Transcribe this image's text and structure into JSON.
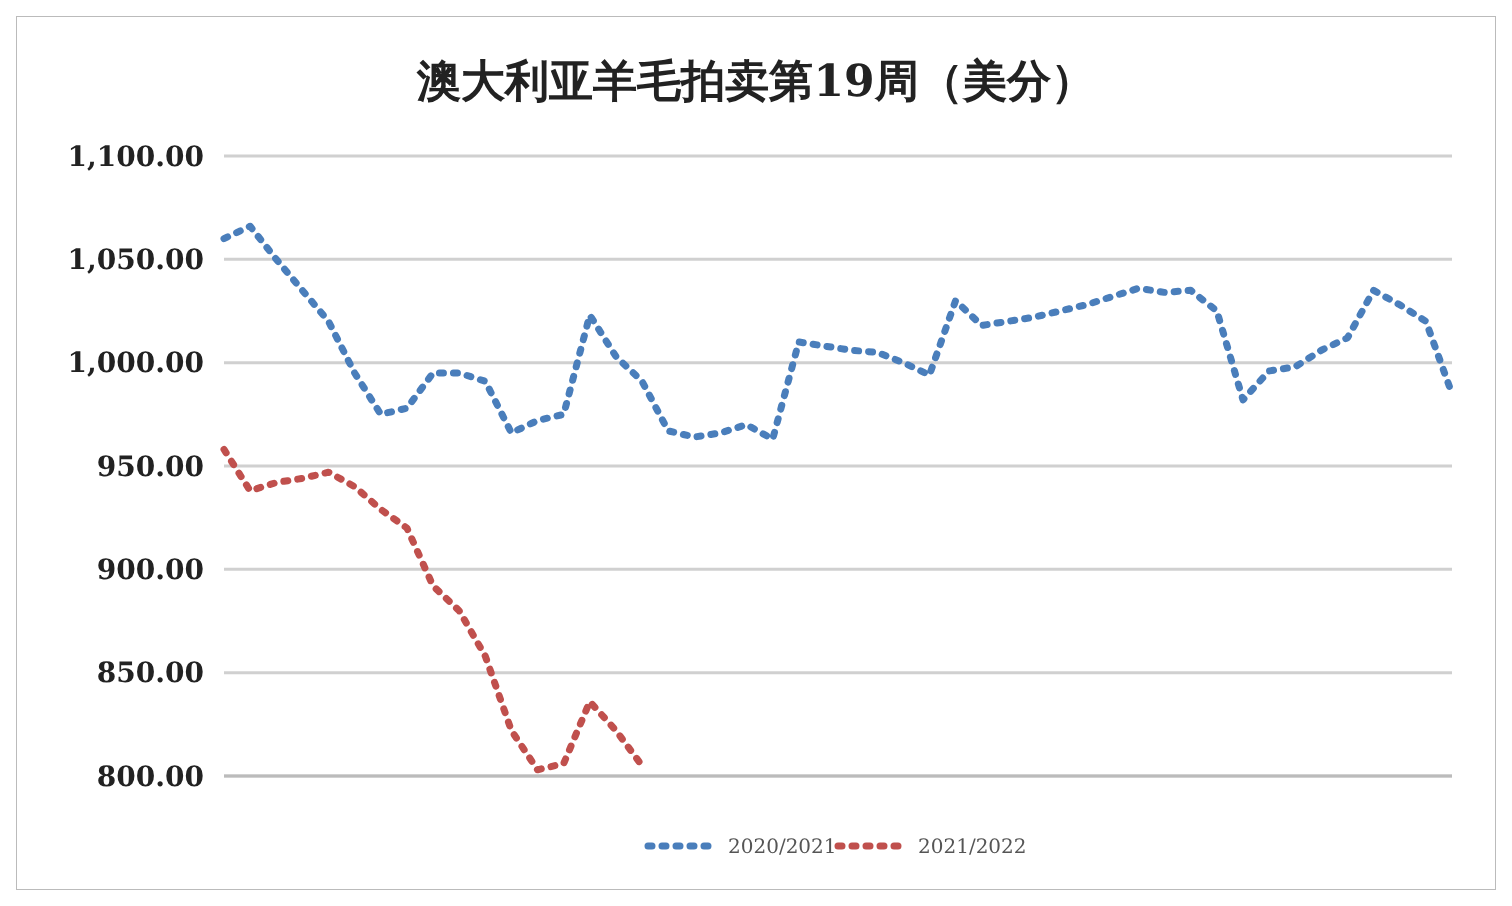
{
  "chart_data": {
    "type": "line",
    "title": "澳大利亚羊毛拍卖第19周（美分）",
    "categories": [
      null,
      null,
      null,
      null,
      null,
      null,
      null,
      null,
      null,
      null,
      null,
      null,
      null,
      null,
      null,
      null,
      null,
      null,
      null,
      null,
      null,
      null,
      null,
      null,
      null,
      null,
      null,
      null,
      null,
      null,
      null,
      null,
      null,
      null,
      null,
      null,
      null,
      null,
      null,
      null,
      null,
      null,
      null,
      null,
      null,
      null,
      null,
      null
    ],
    "series": [
      {
        "name": "2020/2021",
        "color": "#4a7ebb",
        "values": [
          1060,
          1066,
          1050,
          1035,
          1020,
          995,
          975,
          978,
          995,
          995,
          991,
          966,
          972,
          975,
          1023,
          1003,
          991,
          967,
          964,
          966,
          970,
          963,
          1010,
          1008,
          1006,
          1005,
          1000,
          994,
          1030,
          1018,
          1020,
          1022,
          1025,
          1028,
          1032,
          1036,
          1034,
          1035,
          1025,
          982,
          996,
          998,
          1006,
          1012,
          1035,
          1028,
          1020,
          985
        ]
      },
      {
        "name": "2021/2022",
        "color": "#c0504d",
        "values": [
          958,
          938,
          942,
          944,
          947,
          940,
          929,
          920,
          892,
          880,
          858,
          822,
          803,
          806,
          836,
          822,
          805,
          null,
          null,
          null,
          null,
          null,
          null,
          null,
          null,
          null,
          null,
          null,
          null,
          null,
          null,
          null,
          null,
          null,
          null,
          null,
          null,
          null,
          null,
          null,
          null,
          null,
          null,
          null,
          null,
          null,
          null,
          null
        ]
      }
    ],
    "ylim": [
      800,
      1100
    ],
    "yticks": [
      {
        "value": 800,
        "label": "800.00"
      },
      {
        "value": 850,
        "label": "850.00"
      },
      {
        "value": 900,
        "label": "900.00"
      },
      {
        "value": 950,
        "label": "950.00"
      },
      {
        "value": 1000,
        "label": "1,000.00"
      },
      {
        "value": 1050,
        "label": "1,050.00"
      },
      {
        "value": 1100,
        "label": "1,100.00"
      }
    ],
    "grid": "y",
    "legend": "bottom",
    "line_style": "dotted",
    "marker": "none",
    "tick_labels": "y"
  }
}
